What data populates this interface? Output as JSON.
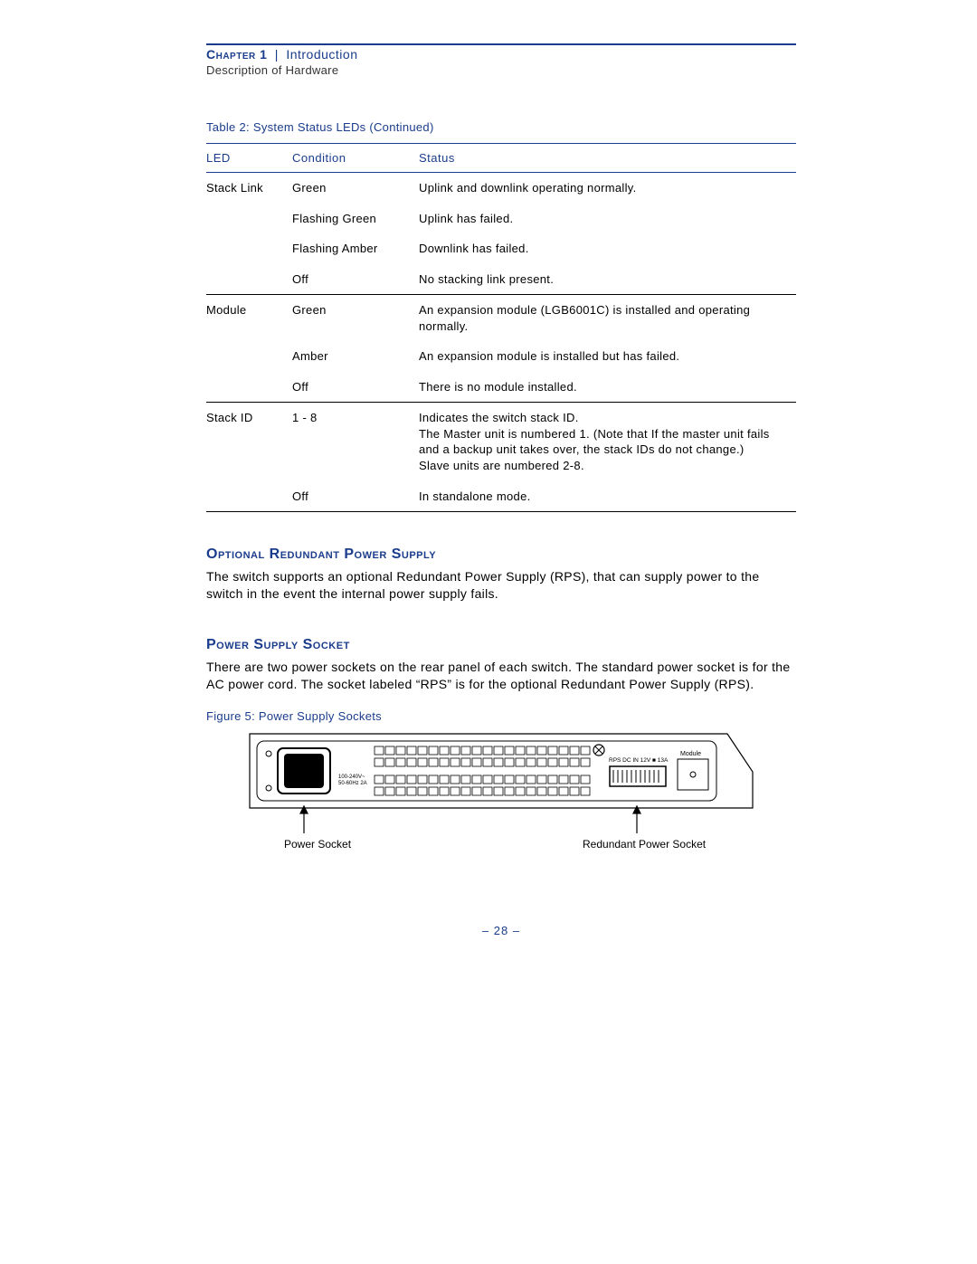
{
  "header": {
    "chapter_label": "Chapter 1",
    "separator": "|",
    "chapter_title": "Introduction",
    "subtitle": "Description of Hardware"
  },
  "table": {
    "caption": "Table 2: System Status LEDs (Continued)",
    "columns": [
      "LED",
      "Condition",
      "Status"
    ],
    "groups": [
      {
        "led": "Stack Link",
        "rows": [
          {
            "condition": "Green",
            "status": "Uplink and downlink operating normally."
          },
          {
            "condition": "Flashing Green",
            "status": "Uplink has failed."
          },
          {
            "condition": "Flashing Amber",
            "status": "Downlink has failed."
          },
          {
            "condition": "Off",
            "status": "No stacking link present."
          }
        ]
      },
      {
        "led": "Module",
        "rows": [
          {
            "condition": "Green",
            "status": "An expansion module (LGB6001C) is installed and operating normally."
          },
          {
            "condition": "Amber",
            "status": "An expansion module is installed but has failed."
          },
          {
            "condition": "Off",
            "status": "There is no module installed."
          }
        ]
      },
      {
        "led": "Stack ID",
        "rows": [
          {
            "condition": "1 - 8",
            "status": "Indicates the switch stack ID.\nThe Master unit is numbered 1. (Note that If the master unit fails and a backup unit takes over, the stack IDs do not change.)\nSlave units are numbered 2-8."
          },
          {
            "condition": "Off",
            "status": "In standalone mode."
          }
        ]
      }
    ],
    "border_color": "#1a3c8c",
    "row_rule_color": "#000000"
  },
  "sections": {
    "rps": {
      "heading": "Optional Redundant Power Supply",
      "body": "The switch supports an optional Redundant Power Supply (RPS), that can supply power to the switch in the event the internal power supply fails."
    },
    "socket": {
      "heading": "Power Supply Socket",
      "body": "There are two power sockets on the rear panel of each switch. The standard power socket is for the AC power cord. The socket labeled “RPS” is for the optional Redundant Power Supply (RPS)."
    }
  },
  "figure": {
    "caption": "Figure 5:  Power Supply Sockets",
    "labels": {
      "power_socket": "Power Socket",
      "redundant_power_socket": "Redundant Power Socket",
      "rps_text": "RPS DC IN 12V ■ 13A",
      "module_text": "Module",
      "ac_text1": "100-240V~",
      "ac_text2": "50-60Hz 2A"
    },
    "colors": {
      "outline": "#000000",
      "fill": "#ffffff",
      "socket_fill": "#000000",
      "port_stroke": "#000000"
    }
  },
  "page_number": "– 28 –",
  "theme": {
    "accent": "#1a3c8c",
    "text": "#000000",
    "background": "#ffffff"
  }
}
